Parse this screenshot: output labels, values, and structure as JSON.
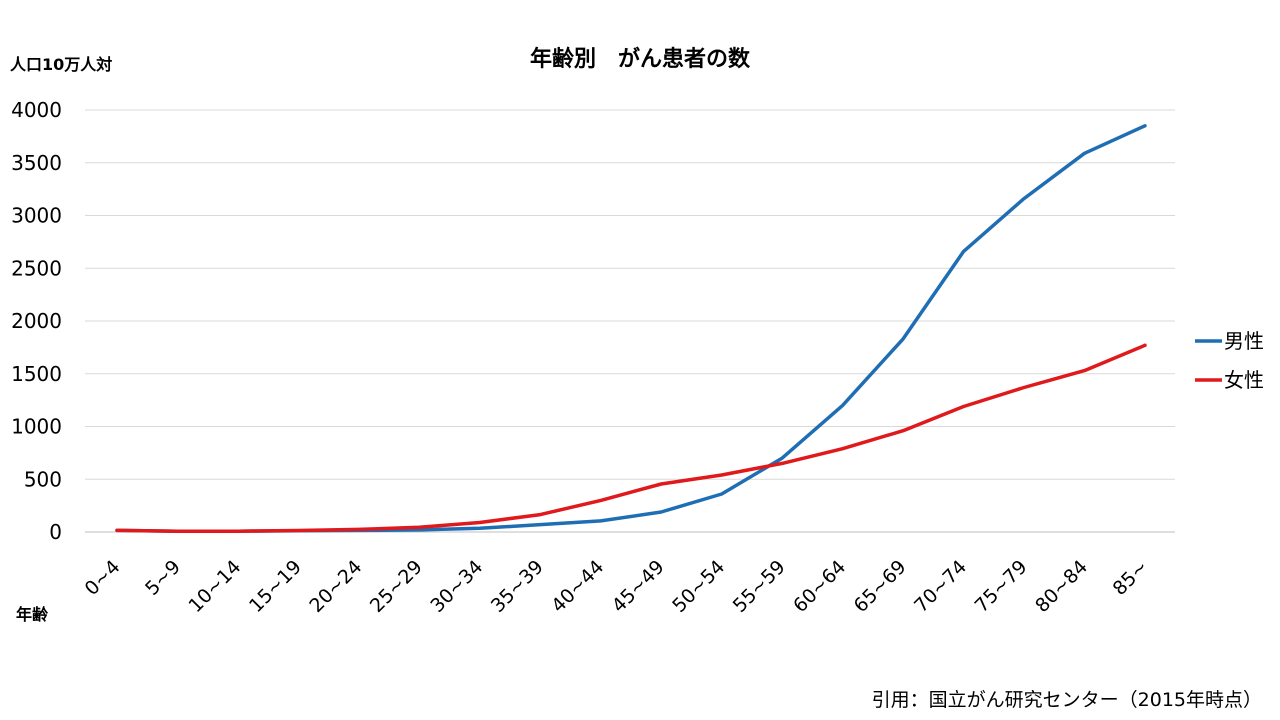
{
  "chart_data": {
    "type": "line",
    "title": "年齢別　がん患者の数",
    "ylabel": "人口10万人対",
    "xlabel": "年齢",
    "categories": [
      "0~4",
      "5~9",
      "10~14",
      "15~19",
      "20~24",
      "25~29",
      "30~34",
      "35~39",
      "40~44",
      "45~49",
      "50~54",
      "55~59",
      "60~64",
      "65~69",
      "70~74",
      "75~79",
      "80~84",
      "85~"
    ],
    "ylim": [
      0,
      4000
    ],
    "yticks": [
      0,
      500,
      1000,
      1500,
      2000,
      2500,
      3000,
      3500,
      4000
    ],
    "grid": true,
    "legend_position": "right",
    "series": [
      {
        "name": "男性",
        "color": "#1F6EB4",
        "values": [
          15,
          8,
          8,
          12,
          15,
          20,
          35,
          70,
          105,
          190,
          360,
          700,
          1200,
          1830,
          2660,
          3160,
          3590,
          3850
        ]
      },
      {
        "name": "女性",
        "color": "#E0191C",
        "values": [
          15,
          8,
          8,
          14,
          25,
          45,
          90,
          165,
          300,
          455,
          540,
          650,
          790,
          960,
          1190,
          1370,
          1530,
          1770
        ]
      }
    ]
  },
  "source": "引用：国立がん研究センター（2015年時点）"
}
